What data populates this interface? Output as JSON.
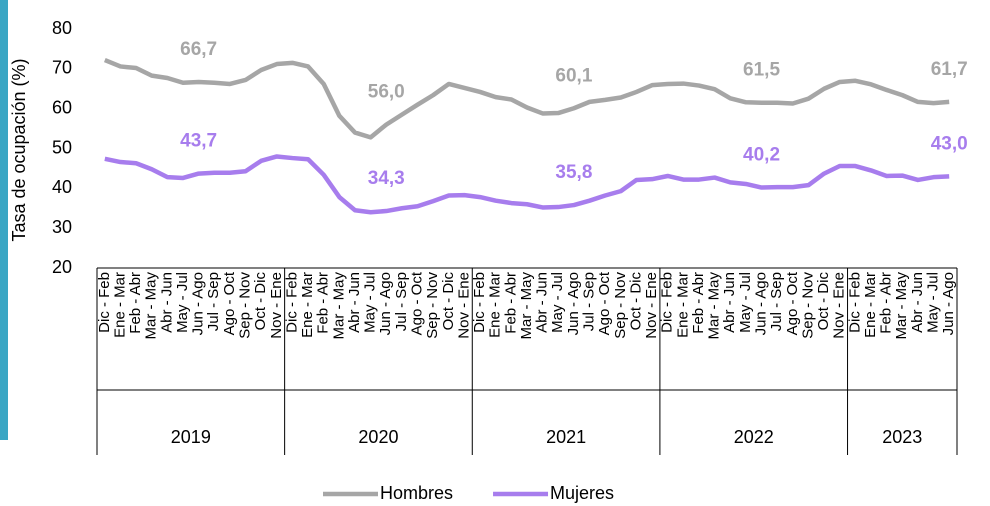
{
  "chart_data": {
    "type": "line",
    "y_label": "Tasa de ocupación (%)",
    "category_groups": [
      {
        "name": "2019",
        "categories": [
          "Dic - Feb",
          "Ene - Mar",
          "Feb - Abr",
          "Mar - May",
          "Abr - Jun",
          "May - Jul",
          "Jun - Ago",
          "Jul - Sep",
          "Ago - Oct",
          "Sep - Nov",
          "Oct - Dic",
          "Nov - Ene"
        ]
      },
      {
        "name": "2020",
        "categories": [
          "Dic - Feb",
          "Ene - Mar",
          "Feb - Abr",
          "Mar - May",
          "Abr - Jun",
          "May - Jul",
          "Jun - Ago",
          "Jul - Sep",
          "Ago - Oct",
          "Sep - Nov",
          "Oct - Dic",
          "Nov - Ene"
        ]
      },
      {
        "name": "2021",
        "categories": [
          "Dic - Feb",
          "Ene - Mar",
          "Feb - Abr",
          "Mar - May",
          "Abr - Jun",
          "May - Jul",
          "Jun - Ago",
          "Jul - Sep",
          "Ago - Oct",
          "Sep - Nov",
          "Oct - Dic",
          "Nov - Ene"
        ]
      },
      {
        "name": "2022",
        "categories": [
          "Dic - Feb",
          "Ene - Mar",
          "Feb - Abr",
          "Mar - May",
          "Abr - Jun",
          "May - Jul",
          "Jun - Ago",
          "Jul - Sep",
          "Ago - Oct",
          "Sep - Nov",
          "Oct - Dic",
          "Nov - Ene"
        ]
      },
      {
        "name": "2023",
        "categories": [
          "Dic - Feb",
          "Ene - Mar",
          "Feb - Abr",
          "Mar - May",
          "Abr - Jun",
          "May - Jul",
          "Jun - Ago"
        ]
      }
    ],
    "series": [
      {
        "name": "Hombres",
        "color": "#a6a6a6",
        "values": [
          72.2,
          70.6,
          70.2,
          68.3,
          67.7,
          66.5,
          66.7,
          66.5,
          66.2,
          67.2,
          69.7,
          71.2,
          71.5,
          70.6,
          66.2,
          58.2,
          54.0,
          52.8,
          56.0,
          58.5,
          61.0,
          63.4,
          66.2,
          65.2,
          64.2,
          62.9,
          62.3,
          60.3,
          58.8,
          58.9,
          60.1,
          61.7,
          62.2,
          62.8,
          64.2,
          65.9,
          66.2,
          66.3,
          65.8,
          64.9,
          62.6,
          61.6,
          61.5,
          61.5,
          61.3,
          62.5,
          65.0,
          66.7,
          67.0,
          66.1,
          64.7,
          63.4,
          61.7,
          61.4,
          61.7
        ],
        "value_labels": [
          null,
          null,
          null,
          null,
          null,
          null,
          "66,7",
          null,
          null,
          null,
          null,
          null,
          null,
          null,
          null,
          null,
          null,
          null,
          "56,0",
          null,
          null,
          null,
          null,
          null,
          null,
          null,
          null,
          null,
          null,
          null,
          "60,1",
          null,
          null,
          null,
          null,
          null,
          null,
          null,
          null,
          null,
          null,
          null,
          "61,5",
          null,
          null,
          null,
          null,
          null,
          null,
          null,
          null,
          null,
          null,
          null,
          "61,7"
        ]
      },
      {
        "name": "Mujeres",
        "color": "#a77ded",
        "values": [
          47.4,
          46.6,
          46.3,
          44.8,
          42.8,
          42.6,
          43.7,
          43.9,
          43.9,
          44.3,
          46.9,
          48.0,
          47.6,
          47.3,
          43.4,
          37.8,
          34.5,
          34.0,
          34.3,
          35.0,
          35.5,
          36.8,
          38.2,
          38.3,
          37.8,
          36.9,
          36.3,
          36.0,
          35.2,
          35.3,
          35.8,
          36.9,
          38.2,
          39.3,
          42.1,
          42.3,
          43.1,
          42.2,
          42.2,
          42.7,
          41.5,
          41.1,
          40.2,
          40.3,
          40.3,
          40.8,
          43.7,
          45.6,
          45.6,
          44.5,
          43.1,
          43.2,
          42.1,
          42.8,
          43.0
        ],
        "value_labels": [
          null,
          null,
          null,
          null,
          null,
          null,
          "43,7",
          null,
          null,
          null,
          null,
          null,
          null,
          null,
          null,
          null,
          null,
          null,
          "34,3",
          null,
          null,
          null,
          null,
          null,
          null,
          null,
          null,
          null,
          null,
          null,
          "35,8",
          null,
          null,
          null,
          null,
          null,
          null,
          null,
          null,
          null,
          null,
          null,
          "40,2",
          null,
          null,
          null,
          null,
          null,
          null,
          null,
          null,
          null,
          null,
          null,
          "43,0"
        ]
      }
    ],
    "ylim": [
      20,
      80
    ],
    "yticks": [
      20,
      30,
      40,
      50,
      60,
      70,
      80
    ],
    "grid": false,
    "legend": "bottom"
  }
}
